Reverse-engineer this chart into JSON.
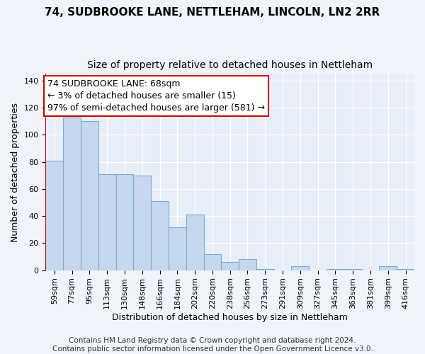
{
  "title": "74, SUDBROOKE LANE, NETTLEHAM, LINCOLN, LN2 2RR",
  "subtitle": "Size of property relative to detached houses in Nettleham",
  "xlabel": "Distribution of detached houses by size in Nettleham",
  "ylabel": "Number of detached properties",
  "categories": [
    "59sqm",
    "77sqm",
    "95sqm",
    "113sqm",
    "130sqm",
    "148sqm",
    "166sqm",
    "184sqm",
    "202sqm",
    "220sqm",
    "238sqm",
    "256sqm",
    "273sqm",
    "291sqm",
    "309sqm",
    "327sqm",
    "345sqm",
    "363sqm",
    "381sqm",
    "399sqm",
    "416sqm"
  ],
  "values": [
    81,
    113,
    110,
    71,
    71,
    70,
    51,
    32,
    41,
    12,
    6,
    8,
    1,
    0,
    3,
    0,
    1,
    1,
    0,
    3,
    1
  ],
  "bar_color": "#c5d8ee",
  "bar_edge_color": "#7aadd4",
  "marker_line_color": "#cc0000",
  "annotation_text": "74 SUDBROOKE LANE: 68sqm\n← 3% of detached houses are smaller (15)\n97% of semi-detached houses are larger (581) →",
  "annotation_box_facecolor": "#ffffff",
  "annotation_box_edgecolor": "#cc0000",
  "ylim": [
    0,
    145
  ],
  "yticks": [
    0,
    20,
    40,
    60,
    80,
    100,
    120,
    140
  ],
  "footer_text": "Contains HM Land Registry data © Crown copyright and database right 2024.\nContains public sector information licensed under the Open Government Licence v3.0.",
  "fig_background_color": "#f0f4fa",
  "axes_background_color": "#e8eef8",
  "grid_color": "#ffffff",
  "title_fontsize": 11,
  "subtitle_fontsize": 10,
  "axis_label_fontsize": 9,
  "tick_fontsize": 8,
  "footer_fontsize": 7.5,
  "annotation_fontsize": 9
}
